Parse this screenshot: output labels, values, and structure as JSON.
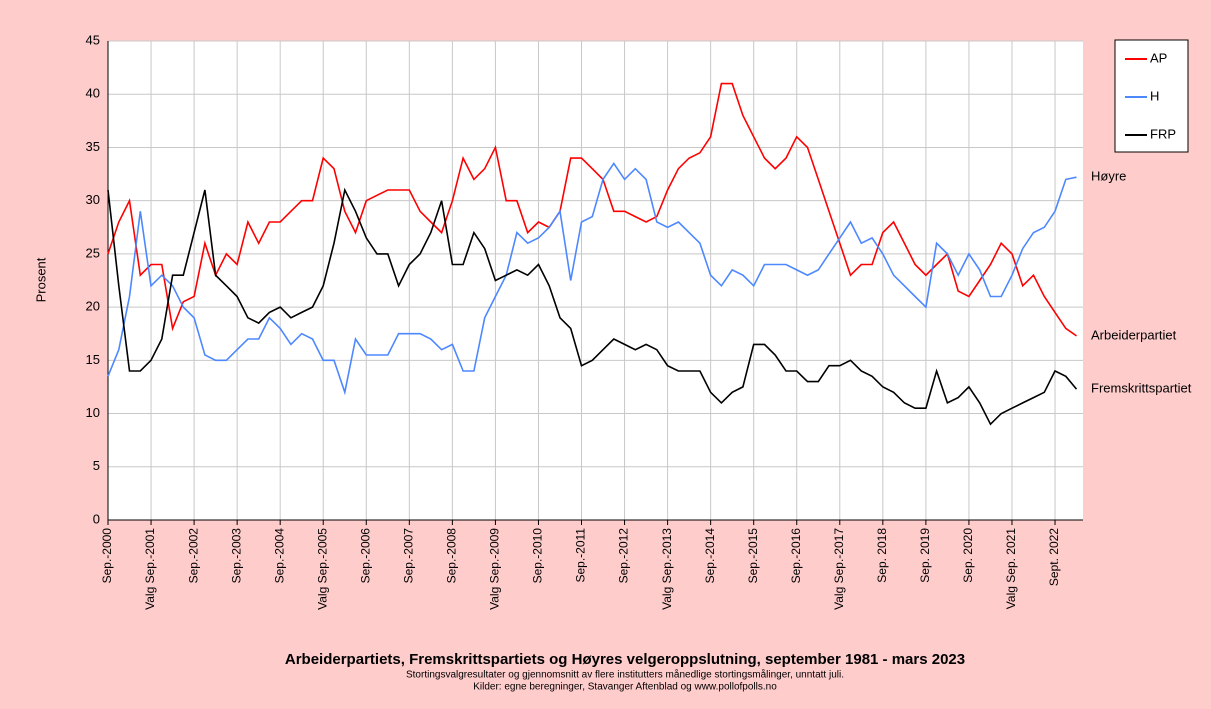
{
  "chart_data": {
    "type": "line",
    "title": "Arbeiderpartiets, Fremskrittspartiets og Høyres velgeroppslutning, september 1981 - mars 2023",
    "subtitle": "Stortingsvalgresultater og gjennomsnitt  av flere institutters månedlige stortingsmålinger, unntatt juli.",
    "source": "Kilder: egne beregninger, Stavanger Aftenblad og www.pollofpolls.no",
    "y_label": "Prosent",
    "categories": [
      "Sep.-2000",
      null,
      null,
      null,
      "Valg Sep.-2001",
      null,
      null,
      null,
      "Sep.-2002",
      null,
      null,
      null,
      "Sep.-2003",
      null,
      null,
      null,
      "Sep.-2004",
      null,
      null,
      null,
      "Valg Sep.-2005",
      null,
      null,
      null,
      "Sep.-2006",
      null,
      null,
      null,
      "Sep.-2007",
      null,
      null,
      null,
      "Sep.-2008",
      null,
      null,
      null,
      "Valg Sep.-2009",
      null,
      null,
      null,
      "Sep.-2010",
      null,
      null,
      null,
      "Sep.-2011",
      null,
      null,
      null,
      "Sep.-2012",
      null,
      null,
      null,
      "Valg Sep.-2013",
      null,
      null,
      null,
      "Sep.-2014",
      null,
      null,
      null,
      "Sep.-2015",
      null,
      null,
      null,
      "Sep.-2016",
      null,
      null,
      null,
      "Valg Sep.-2017",
      null,
      null,
      null,
      "Sep. 2018",
      null,
      null,
      null,
      "Sep. 2019",
      null,
      null,
      null,
      "Sep. 2020",
      null,
      null,
      null,
      "Valg Sep. 2021",
      null,
      null,
      null,
      "Sept. 2022",
      null,
      null
    ],
    "ylim": [
      0,
      45
    ],
    "yticks": [
      0,
      5,
      10,
      15,
      20,
      25,
      30,
      35,
      40,
      45
    ],
    "grid": true,
    "legend": "top-right",
    "series": [
      {
        "name": "AP",
        "label": "Arbeiderpartiet",
        "color": "#ff0000",
        "values": [
          25,
          28,
          30,
          23,
          24,
          24,
          18,
          20.5,
          21,
          26,
          23,
          25,
          24,
          28,
          26,
          28,
          28,
          29,
          30,
          30,
          34,
          33,
          29,
          27,
          30,
          30.5,
          31,
          31,
          31,
          29,
          28,
          27,
          30,
          34,
          32,
          33,
          35,
          30,
          30,
          27,
          28,
          27.5,
          29,
          34,
          34,
          33,
          32,
          29,
          29,
          28.5,
          28,
          28.5,
          31,
          33,
          34,
          34.5,
          36,
          41,
          41,
          38,
          36,
          34,
          33,
          34,
          36,
          35,
          32,
          29,
          26,
          23,
          24,
          24,
          27,
          28,
          26,
          24,
          23,
          24,
          25,
          21.5,
          21,
          22.5,
          24,
          26,
          25,
          22,
          23,
          21,
          19.5,
          18,
          17.3
        ]
      },
      {
        "name": "H",
        "label": "Høyre",
        "color": "#4d88ff",
        "values": [
          13.5,
          16,
          21,
          29,
          22,
          23,
          22,
          20,
          19,
          15.5,
          15,
          15,
          16,
          17,
          17,
          19,
          18,
          16.5,
          17.5,
          17,
          15,
          15,
          12,
          17,
          15.5,
          15.5,
          15.5,
          17.5,
          17.5,
          17.5,
          17,
          16,
          16.5,
          14,
          14,
          19,
          21,
          23,
          27,
          26,
          26.5,
          27.5,
          29,
          22.5,
          28,
          28.5,
          32,
          33.5,
          32,
          33,
          32,
          28,
          27.5,
          28,
          27,
          26,
          23,
          22,
          23.5,
          23,
          22,
          24,
          24,
          24,
          23.5,
          23,
          23.5,
          25,
          26.5,
          28,
          26,
          26.5,
          25,
          23,
          22,
          21,
          20,
          26,
          25,
          23,
          25,
          23.5,
          21,
          21,
          23,
          25.5,
          27,
          27.5,
          29,
          32,
          32.2
        ]
      },
      {
        "name": "FRP",
        "label": "Fremskrittspartiet",
        "color": "#000000",
        "values": [
          31,
          22,
          14,
          14,
          15,
          17,
          23,
          23,
          27,
          31,
          23,
          22,
          21,
          19,
          18.5,
          19.5,
          20,
          19,
          19.5,
          20,
          22,
          26,
          31,
          29,
          26.5,
          25,
          25,
          22,
          24,
          25,
          27,
          30,
          24,
          24,
          27,
          25.5,
          22.5,
          23,
          23.5,
          23,
          24,
          22,
          19,
          18,
          14.5,
          15,
          16,
          17,
          16.5,
          16,
          16.5,
          16,
          14.5,
          14,
          14,
          14,
          12,
          11,
          12,
          12.5,
          16.5,
          16.5,
          15.5,
          14,
          14,
          13,
          13,
          14.5,
          14.5,
          15,
          14,
          13.5,
          12.5,
          12,
          11,
          10.5,
          10.5,
          14,
          11,
          11.5,
          12.5,
          11,
          9,
          10,
          10.5,
          11,
          11.5,
          12,
          14,
          13.5,
          12.3
        ]
      }
    ]
  }
}
